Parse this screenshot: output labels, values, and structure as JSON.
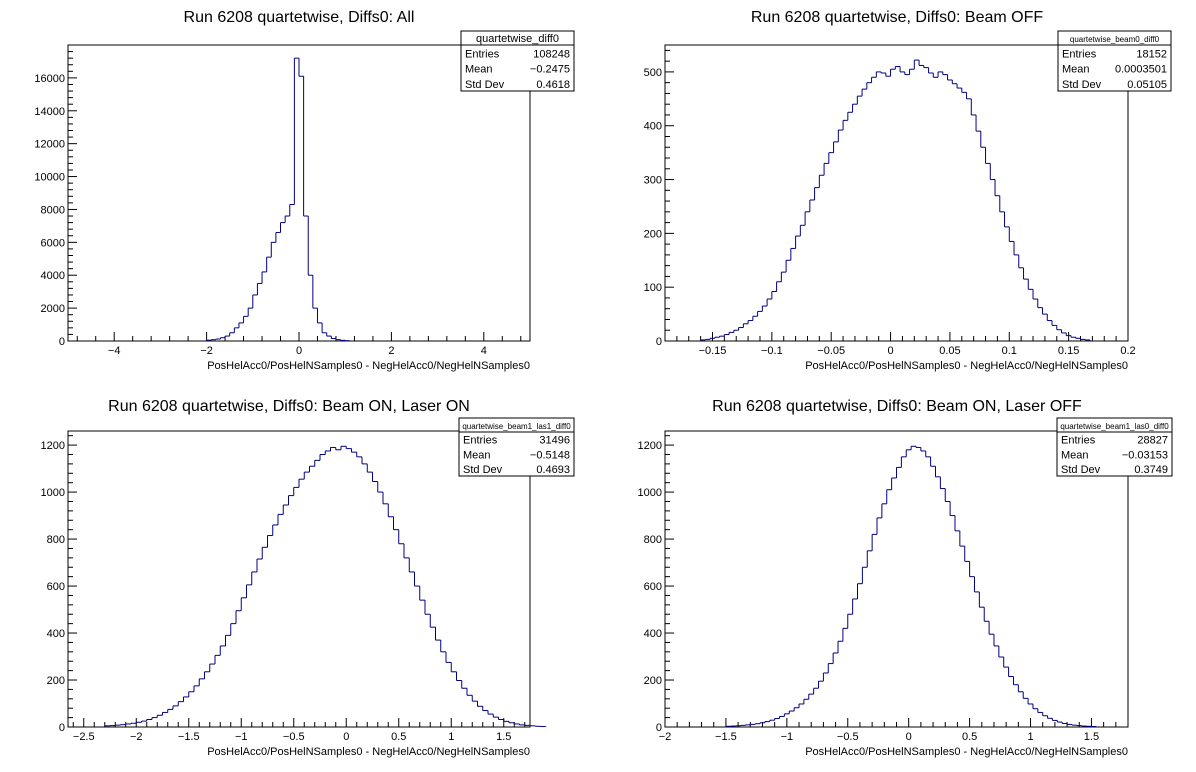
{
  "chart_data": [
    {
      "type": "histogram",
      "title": "Run 6208 quartetwise, Diffs0: All",
      "xlabel": "PosHelAcc0/PosHelNSamples0 - NegHelAcc0/NegHelNSamples0",
      "ylabel": "",
      "xlim": [
        -5,
        5
      ],
      "ylim": [
        0,
        18000
      ],
      "xticks": [
        -4,
        -2,
        0,
        2,
        4
      ],
      "yticks": [
        0,
        2000,
        4000,
        6000,
        8000,
        10000,
        12000,
        14000,
        16000
      ],
      "grid": false,
      "stats": {
        "name": "quartetwise_diff0",
        "entries": "108248",
        "mean": "−0.2475",
        "std_dev": "0.4618"
      },
      "series": [
        {
          "bin_start": -2.0,
          "bin_width": 0.1,
          "values": [
            50,
            80,
            120,
            200,
            300,
            500,
            800,
            1100,
            1500,
            2000,
            2800,
            3500,
            4200,
            5100,
            6000,
            6600,
            7200,
            7600,
            8300,
            17200,
            16100,
            7600,
            4000,
            2000,
            1100,
            500,
            300,
            150,
            80,
            40,
            20
          ]
        }
      ]
    },
    {
      "type": "histogram",
      "title": "Run 6208 quartetwise, Diffs0: Beam OFF",
      "xlabel": "PosHelAcc0/PosHelNSamples0 - NegHelAcc0/NegHelNSamples0",
      "ylabel": "",
      "xlim": [
        -0.19,
        0.2
      ],
      "ylim": [
        0,
        550
      ],
      "xticks": [
        -0.15,
        -0.1,
        -0.05,
        0,
        0.05,
        0.1,
        0.15,
        0.2
      ],
      "xtick_labels": [
        "−0.15",
        "−0.1",
        "−0.05",
        "0",
        "0.05",
        "0.1",
        "0.15",
        "0.2"
      ],
      "yticks": [
        0,
        100,
        200,
        300,
        400,
        500
      ],
      "grid": false,
      "stats": {
        "name": "quartetwise_beam0_diff0",
        "entries": "18152",
        "mean": "0.0003501",
        "std_dev": "0.05105"
      },
      "series": [
        {
          "bin_start": -0.16,
          "bin_width": 0.004,
          "values": [
            2,
            3,
            5,
            7,
            9,
            12,
            16,
            20,
            25,
            32,
            38,
            46,
            55,
            65,
            78,
            92,
            110,
            128,
            150,
            172,
            195,
            215,
            240,
            262,
            285,
            308,
            330,
            350,
            370,
            392,
            410,
            425,
            440,
            455,
            468,
            480,
            490,
            500,
            498,
            492,
            505,
            510,
            500,
            495,
            505,
            522,
            512,
            508,
            498,
            490,
            500,
            495,
            485,
            478,
            470,
            462,
            450,
            420,
            390,
            360,
            330,
            300,
            270,
            240,
            212,
            185,
            160,
            136,
            115,
            96,
            78,
            62,
            50,
            38,
            29,
            21,
            15,
            10,
            7,
            5,
            3,
            2
          ]
        }
      ]
    },
    {
      "type": "histogram",
      "title": "Run 6208 quartetwise, Diffs0: Beam ON, Laser ON",
      "xlabel": "PosHelAcc0/PosHelNSamples0 - NegHelAcc0/NegHelNSamples0",
      "ylabel": "",
      "xlim": [
        -2.65,
        1.75
      ],
      "ylim": [
        0,
        1260
      ],
      "xticks": [
        -2.5,
        -2,
        -1.5,
        -1,
        -0.5,
        0,
        0.5,
        1,
        1.5
      ],
      "xtick_labels": [
        "−2.5",
        "−2",
        "−1.5",
        "−1",
        "−0.5",
        "0",
        "0.5",
        "1",
        "1.5"
      ],
      "yticks": [
        0,
        200,
        400,
        600,
        800,
        1000,
        1200
      ],
      "grid": false,
      "stats": {
        "name": "quartetwise_beam1_las1_diff0",
        "entries": "31496",
        "mean": "−0.5148",
        "std_dev": "0.4693"
      },
      "series": [
        {
          "bin_start": -2.3,
          "bin_width": 0.05,
          "values": [
            5,
            6,
            8,
            10,
            13,
            16,
            20,
            25,
            32,
            40,
            50,
            62,
            75,
            90,
            108,
            128,
            150,
            175,
            205,
            235,
            268,
            305,
            345,
            390,
            440,
            495,
            550,
            605,
            660,
            715,
            765,
            815,
            860,
            905,
            945,
            985,
            1020,
            1055,
            1085,
            1110,
            1135,
            1160,
            1175,
            1190,
            1180,
            1195,
            1185,
            1170,
            1150,
            1120,
            1085,
            1045,
            1000,
            950,
            895,
            840,
            780,
            720,
            660,
            600,
            540,
            480,
            425,
            370,
            320,
            275,
            235,
            198,
            165,
            135,
            110,
            88,
            70,
            55,
            42,
            32,
            24,
            18,
            13,
            9,
            7,
            5,
            3,
            2
          ]
        }
      ]
    },
    {
      "type": "histogram",
      "title": "Run 6208 quartetwise, Diffs0: Beam ON, Laser OFF",
      "xlabel": "PosHelAcc0/PosHelNSamples0 - NegHelAcc0/NegHelNSamples0",
      "ylabel": "",
      "xlim": [
        -2,
        1.8
      ],
      "ylim": [
        0,
        1260
      ],
      "xticks": [
        -2,
        -1.5,
        -1,
        -0.5,
        0,
        0.5,
        1,
        1.5
      ],
      "xtick_labels": [
        "−2",
        "−1.5",
        "−1",
        "−0.5",
        "0",
        "0.5",
        "1",
        "1.5"
      ],
      "yticks": [
        0,
        200,
        400,
        600,
        800,
        1000,
        1200
      ],
      "grid": false,
      "stats": {
        "name": "quartetwise_beam1_las0_diff0",
        "entries": "28827",
        "mean": "−0.03153",
        "std_dev": "0.3749"
      },
      "series": [
        {
          "bin_start": -1.5,
          "bin_width": 0.04,
          "values": [
            3,
            4,
            5,
            7,
            9,
            11,
            14,
            18,
            23,
            29,
            36,
            45,
            56,
            68,
            82,
            98,
            118,
            140,
            165,
            195,
            230,
            270,
            315,
            365,
            420,
            480,
            545,
            610,
            680,
            750,
            820,
            890,
            950,
            1010,
            1060,
            1105,
            1150,
            1180,
            1195,
            1190,
            1175,
            1150,
            1110,
            1065,
            1015,
            960,
            900,
            835,
            770,
            705,
            640,
            575,
            510,
            450,
            395,
            345,
            298,
            255,
            215,
            180,
            150,
            122,
            98,
            78,
            62,
            48,
            37,
            28,
            21,
            15,
            11,
            8,
            6,
            4,
            3,
            2
          ]
        }
      ]
    }
  ]
}
